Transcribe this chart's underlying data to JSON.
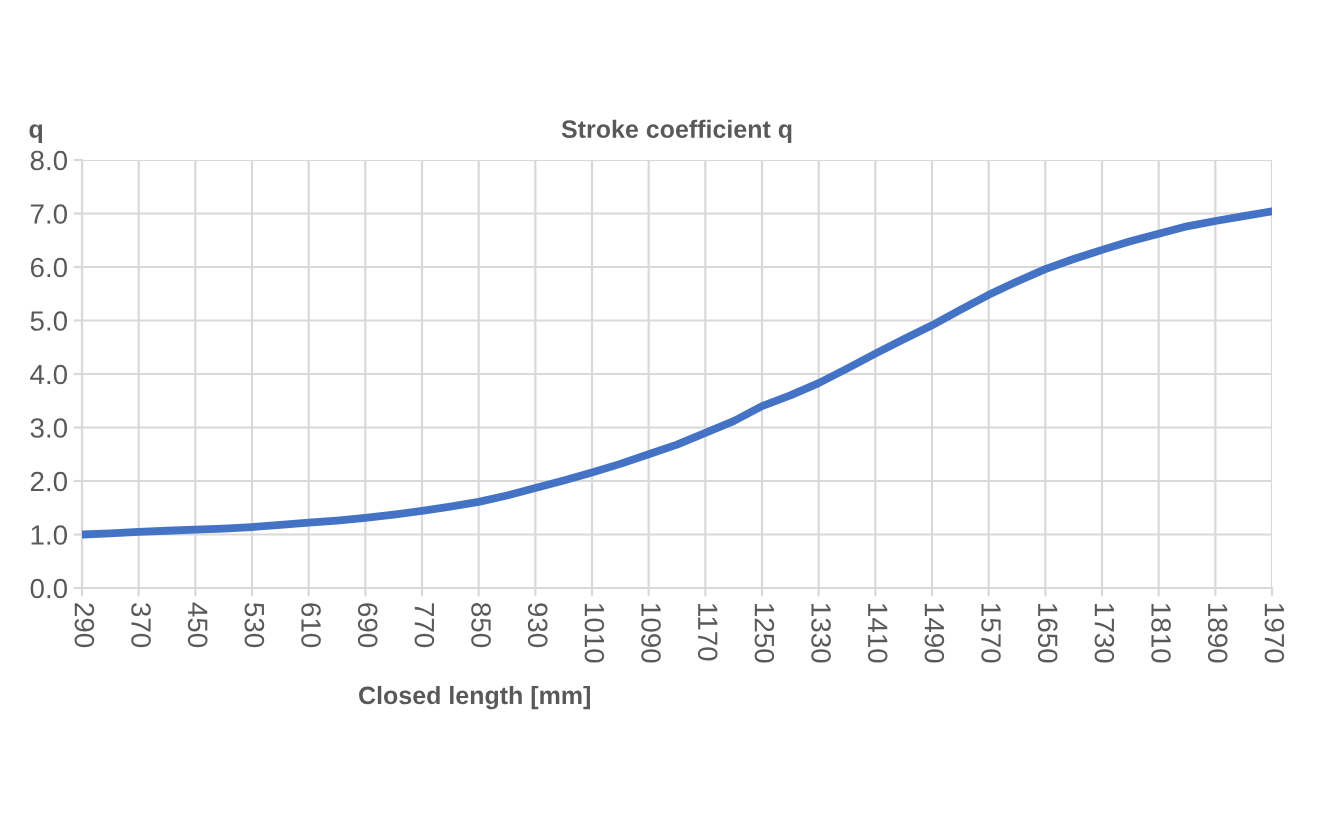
{
  "chart_data": {
    "type": "line",
    "title": "Stroke coefficient q",
    "xlabel": "Closed length [mm]",
    "ylabel": "q",
    "x": [
      290,
      330,
      370,
      410,
      450,
      490,
      530,
      570,
      610,
      650,
      690,
      730,
      770,
      810,
      850,
      890,
      930,
      970,
      1010,
      1050,
      1090,
      1130,
      1170,
      1210,
      1250,
      1290,
      1330,
      1370,
      1410,
      1450,
      1490,
      1530,
      1570,
      1610,
      1650,
      1690,
      1730,
      1770,
      1810,
      1850,
      1890,
      1930,
      1970
    ],
    "series": [
      {
        "color": "#4472c4",
        "values": [
          1.0,
          1.02,
          1.05,
          1.07,
          1.09,
          1.11,
          1.14,
          1.18,
          1.22,
          1.26,
          1.31,
          1.37,
          1.44,
          1.52,
          1.61,
          1.73,
          1.87,
          2.01,
          2.16,
          2.32,
          2.5,
          2.68,
          2.9,
          3.12,
          3.4,
          3.6,
          3.83,
          4.1,
          4.38,
          4.65,
          4.91,
          5.2,
          5.48,
          5.73,
          5.96,
          6.15,
          6.32,
          6.48,
          6.62,
          6.76,
          6.86,
          6.95,
          7.04
        ]
      }
    ],
    "xlim": [
      290,
      1970
    ],
    "xticks": [
      290,
      370,
      450,
      530,
      610,
      690,
      770,
      850,
      930,
      1010,
      1090,
      1170,
      1250,
      1330,
      1410,
      1490,
      1570,
      1650,
      1730,
      1810,
      1890,
      1970
    ],
    "ylim": [
      0,
      8
    ],
    "yticks": [
      {
        "value": 0,
        "label": "0.0"
      },
      {
        "value": 1,
        "label": "1.0"
      },
      {
        "value": 2,
        "label": "2.0"
      },
      {
        "value": 3,
        "label": "3.0"
      },
      {
        "value": 4,
        "label": "4.0"
      },
      {
        "value": 5,
        "label": "5.0"
      },
      {
        "value": 6,
        "label": "6.0"
      },
      {
        "value": 7,
        "label": "7.0"
      },
      {
        "value": 8,
        "label": "8.0"
      }
    ],
    "grid": true,
    "marker": "none",
    "line_style": "solid"
  }
}
